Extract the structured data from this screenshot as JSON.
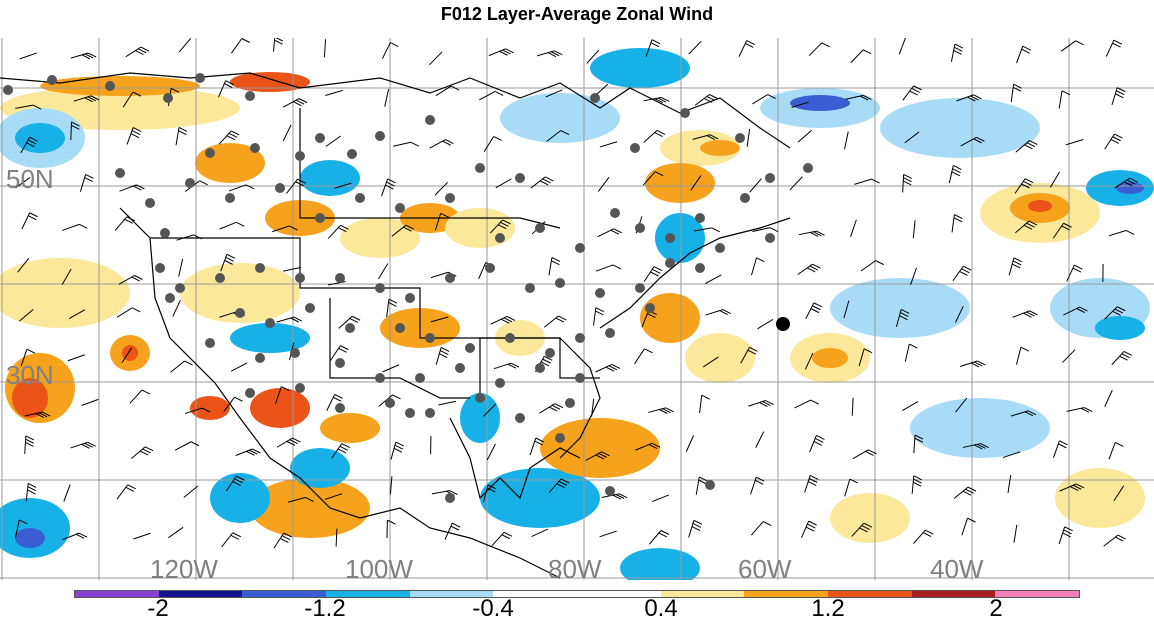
{
  "title": "F012 Layer-Average Zonal Wind",
  "map": {
    "lat_labels": [
      "50N",
      "30N"
    ],
    "lon_labels": [
      "120W",
      "100W",
      "80W",
      "60W",
      "40W"
    ],
    "colors": {
      "land_outline": "#000000",
      "grid": "#9a9a9a",
      "station": "#555555",
      "highlight_station": "#000000"
    }
  },
  "colorbar": {
    "labels": [
      "-2",
      "-1.2",
      "-0.4",
      "0.4",
      "1.2",
      "2"
    ],
    "colors": [
      "#8a3fd1",
      "#10138c",
      "#3a5ed1",
      "#17b1e8",
      "#a8dcf6",
      "#ffffff",
      "#ffffff",
      "#fbe89a",
      "#f7a21c",
      "#eb5418",
      "#a81e1e",
      "#f27fb6"
    ]
  }
}
